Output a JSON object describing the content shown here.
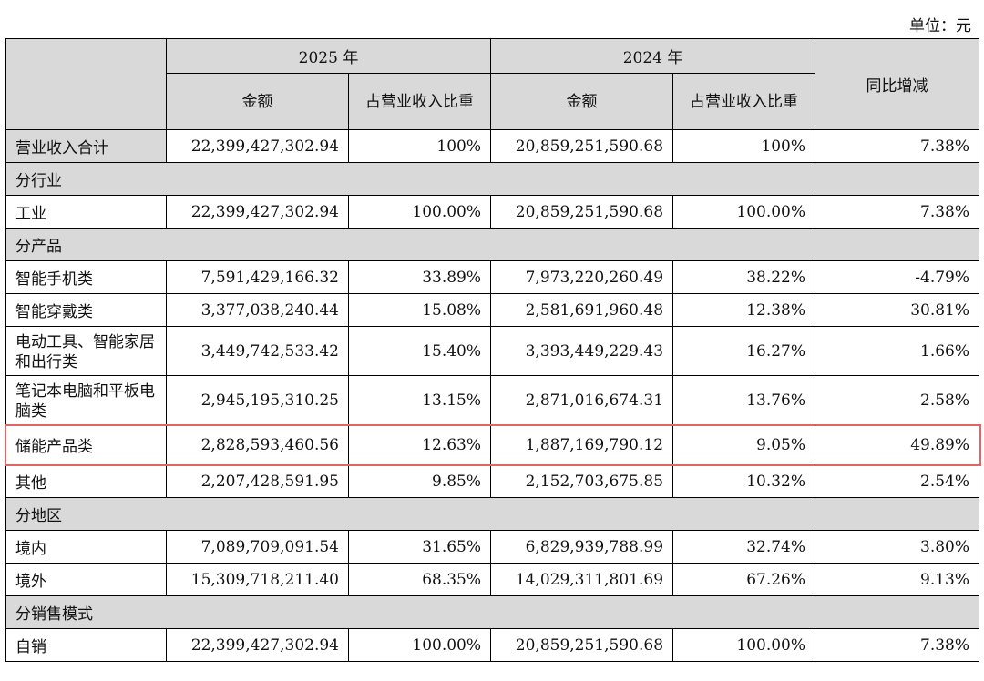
{
  "unit_label": "单位：元",
  "header": {
    "year_2025": "2025 年",
    "year_2024": "2024 年",
    "amount": "金额",
    "ratio": "占营业收入比重",
    "yoy": "同比增减"
  },
  "total": {
    "label": "营业收入合计",
    "amount_2025": "22,399,427,302.94",
    "ratio_2025": "100%",
    "amount_2024": "20,859,251,590.68",
    "ratio_2024": "100%",
    "yoy": "7.38%"
  },
  "sections": {
    "industry": "分行业",
    "product": "分产品",
    "region": "分地区",
    "sales_mode": "分销售模式"
  },
  "rows": {
    "industrial": {
      "label": "工业",
      "amount_2025": "22,399,427,302.94",
      "ratio_2025": "100.00%",
      "amount_2024": "20,859,251,590.68",
      "ratio_2024": "100.00%",
      "yoy": "7.38%"
    },
    "smartphone": {
      "label": "智能手机类",
      "amount_2025": "7,591,429,166.32",
      "ratio_2025": "33.89%",
      "amount_2024": "7,973,220,260.49",
      "ratio_2024": "38.22%",
      "yoy": "-4.79%"
    },
    "wearable": {
      "label": "智能穿戴类",
      "amount_2025": "3,377,038,240.44",
      "ratio_2025": "15.08%",
      "amount_2024": "2,581,691,960.48",
      "ratio_2024": "12.38%",
      "yoy": "30.81%"
    },
    "tools": {
      "label": "电动工具、智能家居和出行类",
      "amount_2025": "3,449,742,533.42",
      "ratio_2025": "15.40%",
      "amount_2024": "3,393,449,229.43",
      "ratio_2024": "16.27%",
      "yoy": "1.66%"
    },
    "laptop": {
      "label": "笔记本电脑和平板电脑类",
      "amount_2025": "2,945,195,310.25",
      "ratio_2025": "13.15%",
      "amount_2024": "2,871,016,674.31",
      "ratio_2024": "13.76%",
      "yoy": "2.58%"
    },
    "storage": {
      "label": "储能产品类",
      "amount_2025": "2,828,593,460.56",
      "ratio_2025": "12.63%",
      "amount_2024": "1,887,169,790.12",
      "ratio_2024": "9.05%",
      "yoy": "49.89%"
    },
    "other": {
      "label": "其他",
      "amount_2025": "2,207,428,591.95",
      "ratio_2025": "9.85%",
      "amount_2024": "2,152,703,675.85",
      "ratio_2024": "10.32%",
      "yoy": "2.54%"
    },
    "domestic": {
      "label": "境内",
      "amount_2025": "7,089,709,091.54",
      "ratio_2025": "31.65%",
      "amount_2024": "6,829,939,788.99",
      "ratio_2024": "32.74%",
      "yoy": "3.80%"
    },
    "overseas": {
      "label": "境外",
      "amount_2025": "15,309,718,211.40",
      "ratio_2025": "68.35%",
      "amount_2024": "14,029,311,801.69",
      "ratio_2024": "67.26%",
      "yoy": "9.13%"
    },
    "direct": {
      "label": "自销",
      "amount_2025": "22,399,427,302.94",
      "ratio_2025": "100.00%",
      "amount_2024": "20,859,251,590.68",
      "ratio_2024": "100.00%",
      "yoy": "7.38%"
    }
  },
  "colors": {
    "header_fill": "#d9d9d9",
    "highlight_border": "#e06666"
  }
}
